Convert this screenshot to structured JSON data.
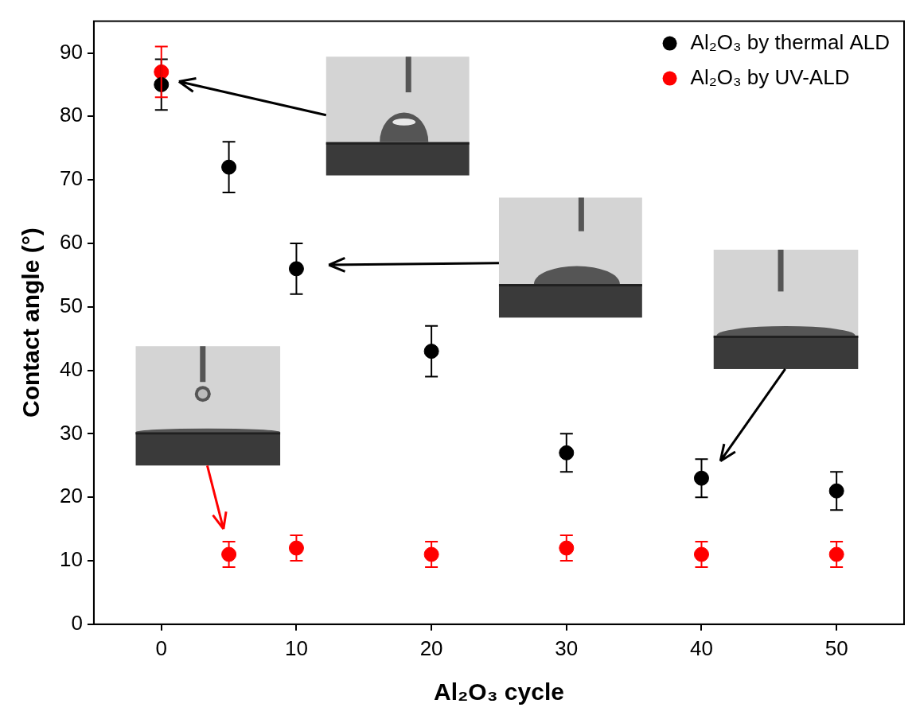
{
  "chart_data": {
    "type": "scatter",
    "x_label": "Al₂O₃ cycle",
    "y_label": "Contact angle (°)",
    "xlim": [
      -5,
      55
    ],
    "xticks": [
      0,
      10,
      20,
      30,
      40,
      50
    ],
    "ylim": [
      0,
      95
    ],
    "yticks": [
      0,
      10,
      20,
      30,
      40,
      50,
      60,
      70,
      80,
      90
    ],
    "grid": false,
    "legend": "upper right",
    "series": [
      {
        "name": "Al₂O₃ by thermal ALD",
        "color": "#000000",
        "marker": "circle",
        "x": [
          0,
          5,
          10,
          20,
          30,
          40,
          50
        ],
        "values": [
          85,
          72,
          56,
          43,
          27,
          23,
          21
        ],
        "errors": [
          4,
          4,
          4,
          4,
          3,
          3,
          3
        ]
      },
      {
        "name": "Al₂O₃ by UV-ALD",
        "color": "#ff0000",
        "marker": "circle",
        "x": [
          0,
          5,
          10,
          20,
          30,
          40,
          50
        ],
        "values": [
          87,
          11,
          12,
          11,
          12,
          11,
          11
        ],
        "errors": [
          4,
          2,
          2,
          2,
          2,
          2,
          2
        ]
      }
    ]
  }
}
